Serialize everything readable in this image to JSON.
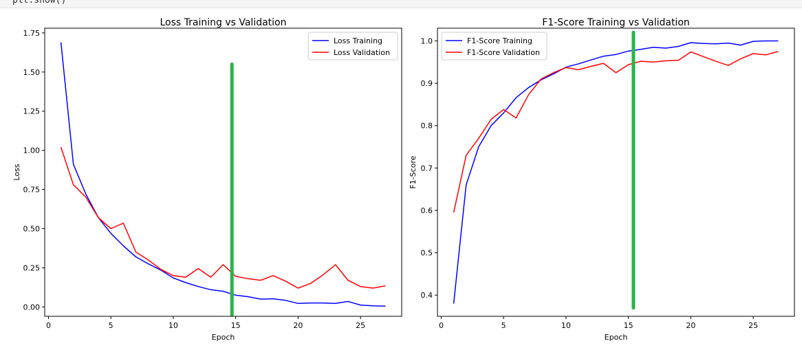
{
  "code_cell": {
    "text": "plt.show()"
  },
  "marker_color": "#2ab34a",
  "chart_data": [
    {
      "type": "line",
      "title": "Loss Training vs Validation",
      "xlabel": "Epoch",
      "ylabel": "Loss",
      "xlim": [
        -0.3,
        28.3
      ],
      "ylim": [
        -0.06,
        1.78
      ],
      "xticks": [
        0,
        5,
        10,
        15,
        20,
        25
      ],
      "xtick_labels": [
        "0",
        "5",
        "10",
        "15",
        "20",
        "25"
      ],
      "yticks": [
        0.0,
        0.25,
        0.5,
        0.75,
        1.0,
        1.25,
        1.5,
        1.75
      ],
      "ytick_labels": [
        "0.00",
        "0.25",
        "0.50",
        "0.75",
        "1.00",
        "1.25",
        "1.50",
        "1.75"
      ],
      "legend_position": "top-right",
      "grid": false,
      "x": [
        1,
        2,
        3,
        4,
        5,
        6,
        7,
        8,
        9,
        10,
        11,
        12,
        13,
        14,
        15,
        16,
        17,
        18,
        19,
        20,
        21,
        22,
        23,
        24,
        25,
        26,
        27
      ],
      "series": [
        {
          "name": "Loss Training",
          "color": "#0000ff",
          "values": [
            1.69,
            0.91,
            0.72,
            0.57,
            0.47,
            0.39,
            0.32,
            0.275,
            0.235,
            0.185,
            0.155,
            0.13,
            0.11,
            0.1,
            0.075,
            0.065,
            0.05,
            0.052,
            0.042,
            0.022,
            0.025,
            0.025,
            0.022,
            0.035,
            0.012,
            0.007,
            0.005
          ]
        },
        {
          "name": "Loss Validation",
          "color": "#ff0000",
          "values": [
            1.02,
            0.78,
            0.7,
            0.57,
            0.5,
            0.535,
            0.35,
            0.3,
            0.24,
            0.2,
            0.19,
            0.245,
            0.19,
            0.27,
            0.195,
            0.18,
            0.17,
            0.2,
            0.165,
            0.12,
            0.15,
            0.205,
            0.27,
            0.17,
            0.13,
            0.12,
            0.135
          ]
        }
      ],
      "marker_line": {
        "x": 14.7,
        "y_range": [
          -0.05,
          1.55
        ]
      }
    },
    {
      "type": "line",
      "title": "F1-Score Training vs Validation",
      "xlabel": "Epoch",
      "ylabel": "F1-Score",
      "xlim": [
        -0.3,
        28.3
      ],
      "ylim": [
        0.35,
        1.03
      ],
      "xticks": [
        0,
        5,
        10,
        15,
        20,
        25
      ],
      "xtick_labels": [
        "0",
        "5",
        "10",
        "15",
        "20",
        "25"
      ],
      "yticks": [
        0.4,
        0.5,
        0.6,
        0.7,
        0.8,
        0.9,
        1.0
      ],
      "ytick_labels": [
        "0.4",
        "0.5",
        "0.6",
        "0.7",
        "0.8",
        "0.9",
        "1.0"
      ],
      "legend_position": "top-left",
      "grid": false,
      "x": [
        1,
        2,
        3,
        4,
        5,
        6,
        7,
        8,
        9,
        10,
        11,
        12,
        13,
        14,
        15,
        16,
        17,
        18,
        19,
        20,
        21,
        22,
        23,
        24,
        25,
        26,
        27
      ],
      "series": [
        {
          "name": "F1-Score Training",
          "color": "#0000ff",
          "values": [
            0.38,
            0.66,
            0.75,
            0.8,
            0.83,
            0.866,
            0.89,
            0.908,
            0.922,
            0.938,
            0.946,
            0.955,
            0.964,
            0.968,
            0.976,
            0.98,
            0.985,
            0.983,
            0.987,
            0.996,
            0.994,
            0.993,
            0.995,
            0.99,
            0.999,
            1.0,
            1.0
          ]
        },
        {
          "name": "F1-Score Validation",
          "color": "#ff0000",
          "values": [
            0.595,
            0.73,
            0.77,
            0.815,
            0.838,
            0.818,
            0.873,
            0.91,
            0.925,
            0.937,
            0.932,
            0.94,
            0.947,
            0.925,
            0.944,
            0.952,
            0.95,
            0.953,
            0.954,
            0.974,
            0.963,
            0.952,
            0.942,
            0.958,
            0.97,
            0.967,
            0.975
          ]
        }
      ],
      "marker_line": {
        "x": 15.4,
        "y_range": [
          0.37,
          1.02
        ]
      }
    }
  ]
}
